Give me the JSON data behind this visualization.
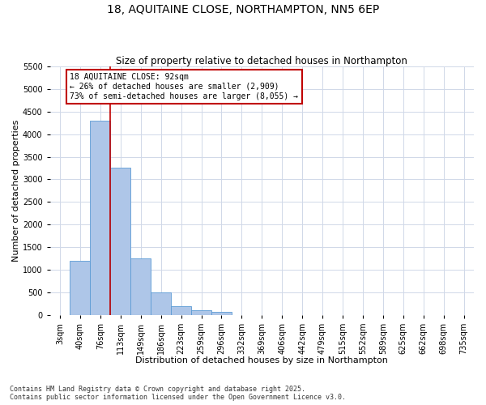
{
  "title": "18, AQUITAINE CLOSE, NORTHAMPTON, NN5 6EP",
  "subtitle": "Size of property relative to detached houses in Northampton",
  "xlabel": "Distribution of detached houses by size in Northampton",
  "ylabel": "Number of detached properties",
  "categories": [
    "3sqm",
    "40sqm",
    "76sqm",
    "113sqm",
    "149sqm",
    "186sqm",
    "223sqm",
    "259sqm",
    "296sqm",
    "332sqm",
    "369sqm",
    "406sqm",
    "442sqm",
    "479sqm",
    "515sqm",
    "552sqm",
    "589sqm",
    "625sqm",
    "662sqm",
    "698sqm",
    "735sqm"
  ],
  "values": [
    0,
    1200,
    4300,
    3250,
    1250,
    500,
    200,
    100,
    75,
    0,
    0,
    0,
    0,
    0,
    0,
    0,
    0,
    0,
    0,
    0,
    0
  ],
  "bar_color": "#aec6e8",
  "bar_edge_color": "#5b9bd5",
  "vline_x_index": 2,
  "vline_color": "#c00000",
  "annotation_text": "18 AQUITAINE CLOSE: 92sqm\n← 26% of detached houses are smaller (2,909)\n73% of semi-detached houses are larger (8,055) →",
  "annotation_box_color": "#ffffff",
  "annotation_box_edgecolor": "#c00000",
  "ylim": [
    0,
    5500
  ],
  "yticks": [
    0,
    500,
    1000,
    1500,
    2000,
    2500,
    3000,
    3500,
    4000,
    4500,
    5000,
    5500
  ],
  "footer": "Contains HM Land Registry data © Crown copyright and database right 2025.\nContains public sector information licensed under the Open Government Licence v3.0.",
  "bg_color": "#ffffff",
  "grid_color": "#d0d8e8",
  "title_fontsize": 10,
  "subtitle_fontsize": 8.5,
  "label_fontsize": 8,
  "tick_fontsize": 7,
  "footer_fontsize": 6
}
